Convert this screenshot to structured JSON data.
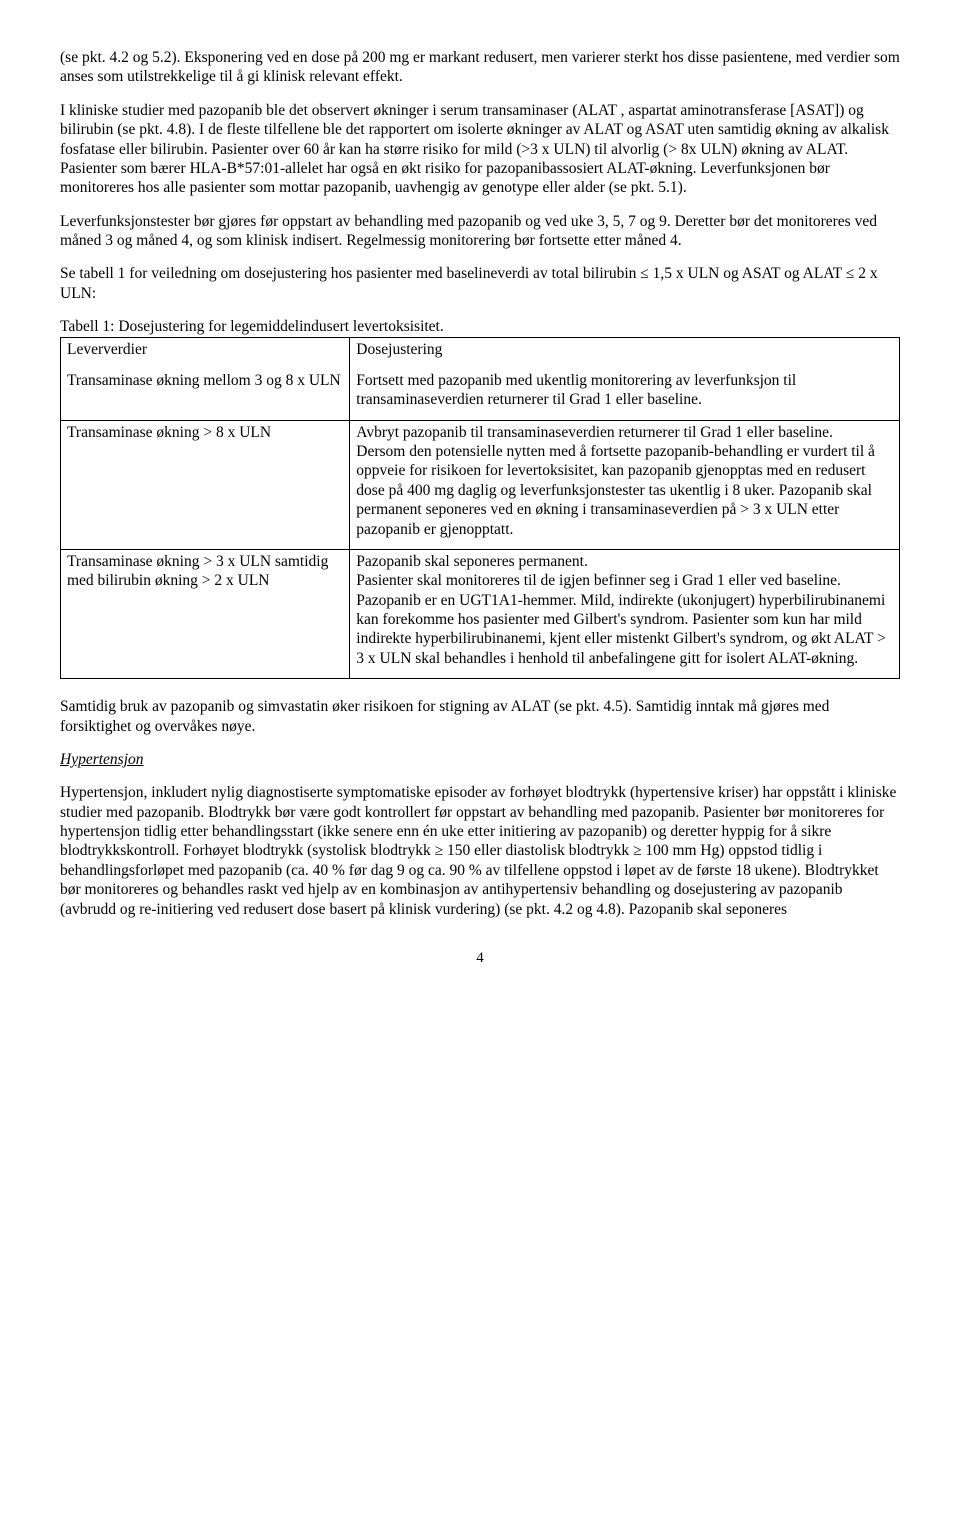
{
  "para1": "(se pkt. 4.2 og 5.2). Eksponering ved en dose på 200 mg er markant redusert, men varierer sterkt hos disse pasientene, med verdier som anses som utilstrekkelige til å gi klinisk relevant effekt.",
  "para2": "I kliniske studier med pazopanib ble det observert økninger i serum transaminaser (ALAT , aspartat aminotransferase [ASAT]) og bilirubin (se pkt. 4.8). I de fleste tilfellene ble det rapportert om isolerte økninger av ALAT og ASAT uten samtidig økning av alkalisk fosfatase eller bilirubin. Pasienter over 60 år kan ha større risiko for mild (>3 x ULN) til alvorlig (> 8x ULN) økning av ALAT. Pasienter som bærer HLA-B*57:01-allelet har også en økt risiko for pazopanibassosiert ALAT-økning. Leverfunksjonen bør monitoreres hos alle pasienter som mottar pazopanib, uavhengig av genotype eller alder (se pkt. 5.1).",
  "para3": "Leverfunksjonstester bør gjøres før oppstart av behandling med pazopanib og ved uke 3, 5, 7 og 9. Deretter bør det monitoreres ved måned 3 og måned 4, og som klinisk indisert. Regelmessig monitorering bør fortsette etter måned 4.",
  "para4": "Se tabell 1 for veiledning om dosejustering hos pasienter med baselineverdi av total bilirubin ≤ 1,5 x ULN og ASAT og ALAT ≤ 2 x ULN:",
  "table_caption": "Tabell 1: Dosejustering for legemiddelindusert levertoksisitet.",
  "header": {
    "c1": "Leververdier",
    "c2": "Dosejustering"
  },
  "row1": {
    "c1": "Transaminase økning mellom 3 og 8 x ULN",
    "c2": "Fortsett med pazopanib med ukentlig monitorering av leverfunksjon til transaminaseverdien returnerer til Grad 1 eller baseline."
  },
  "row2": {
    "c1": "Transaminase økning > 8 x ULN",
    "c2": "Avbryt pazopanib til transaminaseverdien returnerer til Grad 1 eller baseline.\nDersom den potensielle nytten med å fortsette pazopanib-behandling er vurdert til å oppveie for risikoen for levertoksisitet, kan pazopanib gjenopptas med en redusert dose på 400 mg daglig og leverfunksjonstester tas ukentlig i 8 uker. Pazopanib skal permanent seponeres ved en økning i transaminaseverdien på > 3 x ULN etter pazopanib er gjenopptatt."
  },
  "row3": {
    "c1": "Transaminase økning > 3 x ULN samtidig med bilirubin økning > 2 x ULN",
    "c2": "Pazopanib skal seponeres permanent.\nPasienter skal monitoreres til de igjen befinner seg i Grad 1 eller ved baseline. Pazopanib er en UGT1A1-hemmer. Mild, indirekte (ukonjugert) hyperbilirubinanemi kan forekomme hos pasienter med Gilbert's syndrom. Pasienter som kun har mild indirekte hyperbilirubinanemi, kjent eller mistenkt Gilbert's syndrom, og økt ALAT > 3 x ULN skal behandles i henhold til anbefalingene gitt for isolert ALAT-økning."
  },
  "para5": "Samtidig bruk av pazopanib og simvastatin øker risikoen for stigning av ALAT (se pkt. 4.5). Samtidig inntak må gjøres med forsiktighet og overvåkes nøye.",
  "section_heading": "Hypertensjon",
  "para6": "Hypertensjon, inkludert nylig diagnostiserte symptomatiske episoder av forhøyet blodtrykk (hypertensive kriser) har oppstått i kliniske studier med pazopanib. Blodtrykk bør være godt kontrollert før oppstart av behandling med pazopanib. Pasienter bør monitoreres for hypertensjon tidlig etter behandlingsstart (ikke senere enn én uke etter initiering av pazopanib) og deretter hyppig for å sikre blodtrykkskontroll. Forhøyet blodtrykk (systolisk blodtrykk ≥ 150 eller diastolisk blodtrykk ≥ 100 mm Hg) oppstod tidlig i behandlingsforløpet med pazopanib (ca. 40 % før dag 9 og ca. 90 % av tilfellene oppstod i løpet av de første 18 ukene). Blodtrykket bør monitoreres og behandles raskt ved hjelp av en kombinasjon av antihypertensiv behandling og dosejustering av pazopanib (avbrudd og re-initiering ved redusert dose basert på klinisk vurdering) (se pkt. 4.2 og 4.8). Pazopanib skal seponeres",
  "page_number": "4"
}
